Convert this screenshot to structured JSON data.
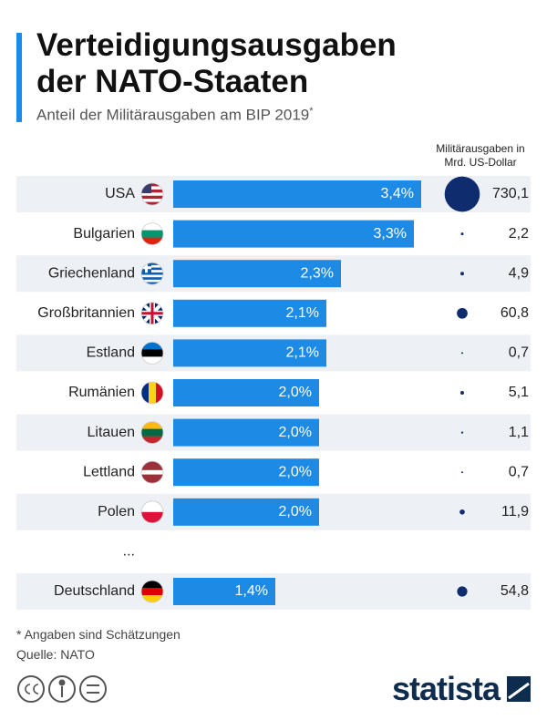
{
  "chart_data": {
    "type": "bar",
    "title": "Verteidigungsausgaben der NATO-Staaten",
    "subtitle": "Anteil der Militärausgaben am BIP 2019",
    "subtitle_marker": "*",
    "categories": [
      "USA",
      "Bulgarien",
      "Griechenland",
      "Großbritannien",
      "Estland",
      "Rumänien",
      "Litauen",
      "Lettland",
      "Polen",
      "...",
      "Deutschland"
    ],
    "values": [
      3.4,
      3.3,
      2.3,
      2.1,
      2.1,
      2.0,
      2.0,
      2.0,
      2.0,
      null,
      1.4
    ],
    "value_labels": [
      "3,4%",
      "3,3%",
      "2,3%",
      "2,1%",
      "2,1%",
      "2,0%",
      "2,0%",
      "2,0%",
      "2,0%",
      null,
      "1,4%"
    ],
    "color": "#1d8ae6",
    "bubbles": {
      "name": "Militärausgaben in Mrd. US-Dollar",
      "color": "#0e2c6e",
      "values": [
        730.1,
        2.2,
        4.9,
        60.8,
        0.7,
        5.1,
        1.1,
        0.7,
        11.9,
        null,
        54.8
      ],
      "value_labels": [
        "730,1",
        "2,2",
        "4,9",
        "60,8",
        "0,7",
        "5,1",
        "1,1",
        "0,7",
        "11,9",
        null,
        "54,8"
      ]
    },
    "footnote": "* Angaben sind Schätzungen",
    "source": "Quelle: NATO",
    "brand": "statista"
  }
}
